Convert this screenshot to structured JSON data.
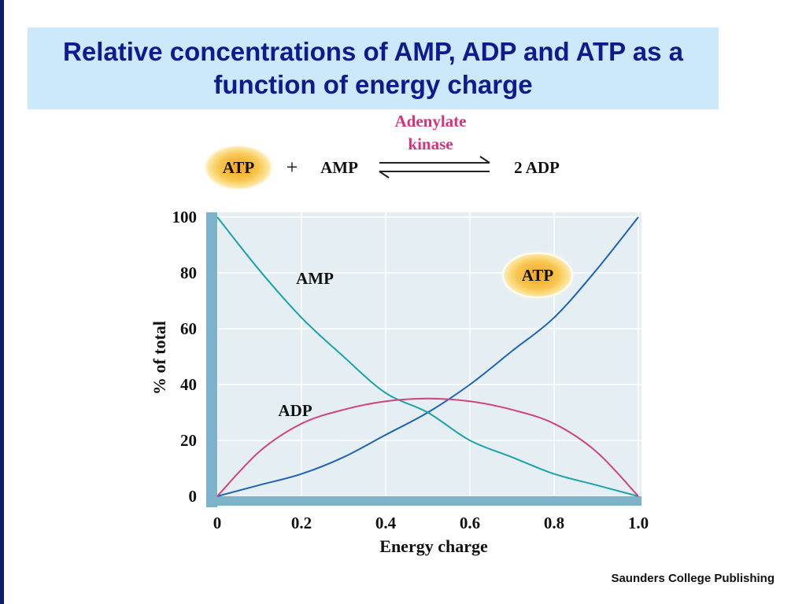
{
  "title": "Relative concentrations of AMP, ADP and ATP as a function of energy charge",
  "credit": "Saunders College Publishing",
  "reaction": {
    "enzyme_line1": "Adenylate",
    "enzyme_line2": "kinase",
    "reactant1": "ATP",
    "plus": "+",
    "reactant2": "AMP",
    "product": "2 ADP"
  },
  "colors": {
    "title_bg": "#cce9fb",
    "title_text": "#0e1a8e",
    "enzyme_text": "#d6337a",
    "atp_line": "#1f63b5",
    "amp_line": "#1aa3a8",
    "adp_line": "#d0457a",
    "plot_bg": "#e4eef3",
    "axis_bar": "#7db3c8",
    "atp_badge": "#f5b324"
  },
  "chart_data": {
    "type": "line",
    "xlabel": "Energy charge",
    "ylabel": "% of total",
    "xlim": [
      0,
      1
    ],
    "ylim": [
      0,
      100
    ],
    "xticks": [
      "0",
      "0.2",
      "0.4",
      "0.6",
      "0.8",
      "1.0"
    ],
    "yticks": [
      "0",
      "20",
      "40",
      "60",
      "80",
      "100"
    ],
    "grid": true,
    "x": [
      0,
      0.1,
      0.2,
      0.3,
      0.4,
      0.5,
      0.6,
      0.7,
      0.8,
      0.9,
      1.0
    ],
    "series": [
      {
        "name": "ATP",
        "values": [
          0,
          4,
          8,
          14,
          22,
          30,
          40,
          52,
          64,
          81,
          100
        ]
      },
      {
        "name": "AMP",
        "values": [
          100,
          81,
          64,
          50,
          37,
          30,
          20,
          14,
          8,
          4,
          0
        ]
      },
      {
        "name": "ADP",
        "values": [
          0,
          16,
          26,
          31,
          34,
          35,
          34,
          31,
          26,
          16,
          0
        ]
      }
    ]
  }
}
